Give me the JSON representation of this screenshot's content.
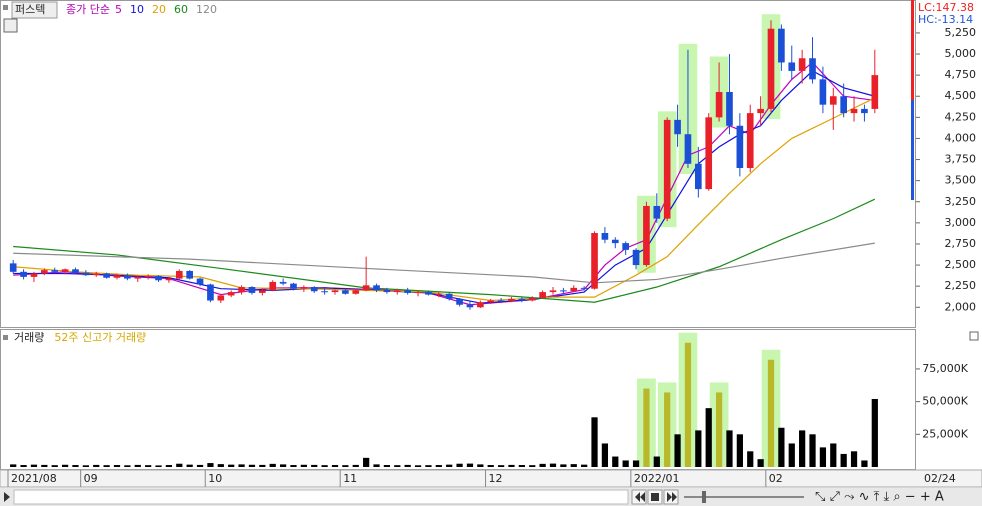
{
  "chart_data": [
    {
      "type": "candlestick",
      "title": "퍼스텍",
      "ma_label": "종가 단순",
      "up_color": "#e8202a",
      "down_color": "#1a4fd6",
      "highlight_color": "#c8f5b0",
      "grid": false,
      "ylim": [
        1790,
        5640
      ],
      "yticks": [
        {
          "value": 2000,
          "label": "2,000"
        },
        {
          "value": 2250,
          "label": "2,250"
        },
        {
          "value": 2500,
          "label": "2,500"
        },
        {
          "value": 2750,
          "label": "2,750"
        },
        {
          "value": 3000,
          "label": "3,000"
        },
        {
          "value": 3250,
          "label": "3,250"
        },
        {
          "value": 3500,
          "label": "3,500"
        },
        {
          "value": 3750,
          "label": "3,750"
        },
        {
          "value": 4000,
          "label": "4,000"
        },
        {
          "value": 4250,
          "label": "4,250"
        },
        {
          "value": 4500,
          "label": "4,500"
        },
        {
          "value": 4750,
          "label": "4,750"
        },
        {
          "value": 5000,
          "label": "5,000"
        },
        {
          "value": 5250,
          "label": "5,250"
        }
      ],
      "lc_label": "LC:147.38",
      "hc_label": "HC:-13.14",
      "date_ticks": [
        {
          "value": 0,
          "label": "2021/08"
        },
        {
          "value": 7,
          "label": "09"
        },
        {
          "value": 19,
          "label": "10"
        },
        {
          "value": 32,
          "label": "11"
        },
        {
          "value": 46,
          "label": "12"
        },
        {
          "value": 60,
          "label": "2022/01"
        },
        {
          "value": 73,
          "label": "02"
        }
      ],
      "last_date": "02/24",
      "highlight": [
        61,
        63,
        65,
        68,
        73
      ],
      "candles": [
        [
          2520,
          2560,
          2400,
          2420
        ],
        [
          2420,
          2450,
          2330,
          2360
        ],
        [
          2360,
          2420,
          2300,
          2400
        ],
        [
          2400,
          2460,
          2380,
          2440
        ],
        [
          2440,
          2470,
          2400,
          2420
        ],
        [
          2420,
          2460,
          2390,
          2450
        ],
        [
          2450,
          2470,
          2400,
          2410
        ],
        [
          2410,
          2440,
          2370,
          2380
        ],
        [
          2380,
          2420,
          2360,
          2400
        ],
        [
          2400,
          2410,
          2340,
          2350
        ],
        [
          2350,
          2400,
          2330,
          2380
        ],
        [
          2380,
          2400,
          2320,
          2340
        ],
        [
          2340,
          2380,
          2300,
          2360
        ],
        [
          2360,
          2390,
          2330,
          2370
        ],
        [
          2370,
          2380,
          2300,
          2320
        ],
        [
          2320,
          2360,
          2290,
          2340
        ],
        [
          2340,
          2450,
          2330,
          2430
        ],
        [
          2430,
          2440,
          2330,
          2340
        ],
        [
          2340,
          2350,
          2250,
          2270
        ],
        [
          2270,
          2280,
          2060,
          2080
        ],
        [
          2080,
          2160,
          2050,
          2140
        ],
        [
          2140,
          2200,
          2120,
          2180
        ],
        [
          2180,
          2260,
          2150,
          2240
        ],
        [
          2240,
          2250,
          2150,
          2170
        ],
        [
          2170,
          2220,
          2140,
          2200
        ],
        [
          2200,
          2320,
          2190,
          2300
        ],
        [
          2300,
          2340,
          2260,
          2280
        ],
        [
          2280,
          2290,
          2200,
          2220
        ],
        [
          2220,
          2260,
          2180,
          2240
        ],
        [
          2240,
          2250,
          2170,
          2190
        ],
        [
          2190,
          2220,
          2150,
          2180
        ],
        [
          2180,
          2210,
          2150,
          2200
        ],
        [
          2200,
          2220,
          2150,
          2160
        ],
        [
          2160,
          2220,
          2150,
          2200
        ],
        [
          2200,
          2600,
          2190,
          2260
        ],
        [
          2260,
          2280,
          2180,
          2200
        ],
        [
          2200,
          2230,
          2160,
          2180
        ],
        [
          2180,
          2220,
          2150,
          2200
        ],
        [
          2200,
          2230,
          2150,
          2170
        ],
        [
          2170,
          2200,
          2130,
          2180
        ],
        [
          2180,
          2200,
          2140,
          2150
        ],
        [
          2150,
          2180,
          2120,
          2160
        ],
        [
          2160,
          2170,
          2080,
          2100
        ],
        [
          2100,
          2110,
          2010,
          2030
        ],
        [
          2030,
          2070,
          1970,
          2000
        ],
        [
          2000,
          2080,
          1990,
          2060
        ],
        [
          2060,
          2100,
          2040,
          2080
        ],
        [
          2080,
          2110,
          2050,
          2070
        ],
        [
          2070,
          2120,
          2060,
          2100
        ],
        [
          2100,
          2120,
          2060,
          2080
        ],
        [
          2080,
          2130,
          2070,
          2110
        ],
        [
          2110,
          2200,
          2100,
          2180
        ],
        [
          2180,
          2240,
          2150,
          2200
        ],
        [
          2200,
          2230,
          2160,
          2190
        ],
        [
          2190,
          2260,
          2180,
          2230
        ],
        [
          2230,
          2250,
          2200,
          2220
        ],
        [
          2220,
          2900,
          2210,
          2880
        ],
        [
          2880,
          2950,
          2760,
          2800
        ],
        [
          2800,
          2830,
          2700,
          2760
        ],
        [
          2760,
          2780,
          2620,
          2680
        ],
        [
          2680,
          2700,
          2450,
          2500
        ],
        [
          2500,
          3250,
          2480,
          3200
        ],
        [
          3200,
          3350,
          3000,
          3050
        ],
        [
          3050,
          4250,
          3020,
          4220
        ],
        [
          4220,
          4400,
          3900,
          4050
        ],
        [
          4050,
          5050,
          3650,
          3700
        ],
        [
          3700,
          3900,
          3300,
          3400
        ],
        [
          3400,
          4300,
          3380,
          4250
        ],
        [
          4250,
          4900,
          4200,
          4550
        ],
        [
          4550,
          5000,
          4050,
          4150
        ],
        [
          4150,
          4300,
          3550,
          3650
        ],
        [
          3650,
          4400,
          3600,
          4300
        ],
        [
          4300,
          4500,
          4150,
          4350
        ],
        [
          4350,
          5400,
          4300,
          5300
        ],
        [
          5300,
          5350,
          4800,
          4900
        ],
        [
          4900,
          5100,
          4700,
          4800
        ],
        [
          4800,
          5050,
          4650,
          4950
        ],
        [
          4950,
          5200,
          4650,
          4700
        ],
        [
          4700,
          4850,
          4300,
          4400
        ],
        [
          4400,
          4600,
          4100,
          4500
        ],
        [
          4500,
          4650,
          4250,
          4300
        ],
        [
          4300,
          4500,
          4200,
          4350
        ],
        [
          4350,
          4400,
          4200,
          4300
        ],
        [
          4350,
          5050,
          4300,
          4750
        ]
      ],
      "ma": [
        {
          "name": "5",
          "color": "#c000c0",
          "x": [
            0,
            5,
            10,
            15,
            20,
            25,
            30,
            35,
            40,
            44,
            50,
            55,
            57,
            59,
            61,
            63,
            65,
            67,
            69,
            71,
            73,
            75,
            77,
            80,
            83
          ],
          "values": [
            2380,
            2420,
            2370,
            2340,
            2150,
            2230,
            2230,
            2210,
            2170,
            2030,
            2090,
            2210,
            2500,
            2700,
            2800,
            3300,
            3800,
            3900,
            4150,
            4050,
            4400,
            4700,
            4900,
            4500,
            4450
          ]
        },
        {
          "name": "10",
          "color": "#1010e0",
          "x": [
            0,
            5,
            10,
            15,
            20,
            25,
            30,
            35,
            40,
            45,
            50,
            55,
            58,
            61,
            63,
            66,
            68,
            70,
            72,
            74,
            77,
            80,
            83
          ],
          "values": [
            2400,
            2400,
            2380,
            2350,
            2220,
            2200,
            2230,
            2200,
            2170,
            2050,
            2090,
            2180,
            2500,
            2700,
            3100,
            3700,
            3900,
            4050,
            4150,
            4450,
            4800,
            4600,
            4500
          ]
        },
        {
          "name": "20",
          "color": "#e0a000",
          "x": [
            0,
            6,
            12,
            18,
            22,
            28,
            34,
            40,
            46,
            52,
            56,
            60,
            63,
            66,
            69,
            72,
            75,
            78,
            80,
            83
          ],
          "values": [
            2480,
            2420,
            2380,
            2360,
            2230,
            2220,
            2200,
            2180,
            2080,
            2120,
            2120,
            2380,
            2600,
            2980,
            3350,
            3700,
            4000,
            4180,
            4300,
            4480
          ]
        },
        {
          "name": "60",
          "color": "#1a8a1a",
          "x": [
            0,
            10,
            20,
            34,
            46,
            56,
            62,
            68,
            74,
            79,
            83
          ],
          "values": [
            2720,
            2620,
            2460,
            2230,
            2150,
            2060,
            2240,
            2480,
            2800,
            3050,
            3280
          ]
        },
        {
          "name": "120",
          "color": "#8a8a8a",
          "x": [
            0,
            17,
            34,
            50,
            56,
            62,
            68,
            74,
            83
          ],
          "values": [
            2640,
            2570,
            2460,
            2360,
            2290,
            2330,
            2450,
            2580,
            2760
          ]
        }
      ]
    },
    {
      "type": "bar",
      "title": "거래량",
      "highlight_label": "52주 신고가 거래량",
      "color": "#000000",
      "highlight_color": "#b8b828",
      "highlight_bg": "#c8f5b0",
      "grid": false,
      "ylim": [
        0,
        104000
      ],
      "yticks": [
        {
          "value": 25000,
          "label": "25,000K"
        },
        {
          "value": 50000,
          "label": "50,000K"
        },
        {
          "value": 75000,
          "label": "75,000K"
        }
      ],
      "highlight": [
        61,
        63,
        65,
        68,
        73
      ],
      "values": [
        2000,
        1500,
        1800,
        1600,
        1400,
        1700,
        1500,
        1300,
        1600,
        1400,
        1500,
        1300,
        1600,
        1400,
        1200,
        1500,
        2500,
        1800,
        1600,
        3000,
        2200,
        1800,
        2000,
        1700,
        1600,
        2400,
        2000,
        1500,
        1700,
        1600,
        1400,
        1500,
        1400,
        1600,
        7000,
        2000,
        1500,
        1400,
        1600,
        1300,
        1400,
        1500,
        1800,
        2500,
        2600,
        2000,
        1500,
        1400,
        1600,
        1500,
        1400,
        2400,
        2600,
        2000,
        2200,
        1800,
        38000,
        18000,
        8000,
        5000,
        5000,
        60000,
        8000,
        57000,
        25000,
        95000,
        28000,
        45000,
        57000,
        28000,
        25000,
        12000,
        6000,
        82000,
        30000,
        18000,
        28000,
        25000,
        15000,
        18000,
        10000,
        12000,
        5000,
        52000
      ]
    }
  ]
}
